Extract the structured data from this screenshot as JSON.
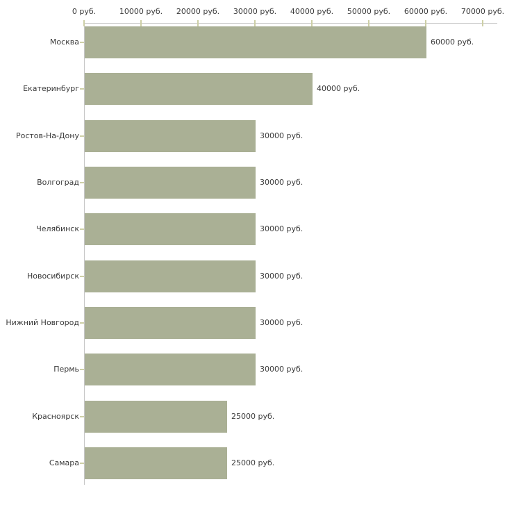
{
  "chart_data": {
    "type": "bar",
    "orientation": "horizontal",
    "title": "",
    "xlabel": "",
    "ylabel": "",
    "unit": "руб.",
    "categories": [
      "Москва",
      "Екатеринбург",
      "Ростов-На-Дону",
      "Волгоград",
      "Челябинск",
      "Новосибирск",
      "Нижний Новгород",
      "Пермь",
      "Красноярск",
      "Самара"
    ],
    "values": [
      60000,
      40000,
      30000,
      30000,
      30000,
      30000,
      30000,
      30000,
      25000,
      25000
    ],
    "value_labels": [
      "60000 руб.",
      "40000 руб.",
      "30000 руб.",
      "30000 руб.",
      "30000 руб.",
      "30000 руб.",
      "30000 руб.",
      "30000 руб.",
      "25000 руб.",
      "25000 руб."
    ],
    "xlim": [
      0,
      70000
    ],
    "x_ticks": [
      0,
      10000,
      20000,
      30000,
      40000,
      50000,
      60000,
      70000
    ],
    "x_tick_labels": [
      "0 руб.",
      "10000 руб.",
      "20000 руб.",
      "30000 руб.",
      "40000 руб.",
      "50000 руб.",
      "60000 руб.",
      "70000 руб."
    ],
    "grid": false,
    "legend": false,
    "colors": {
      "bar": "#aab095",
      "axis_line": "#c6c6c6",
      "tick_mark": "#cdcfa6",
      "text": "#3a3a3a",
      "background": "#ffffff"
    }
  }
}
